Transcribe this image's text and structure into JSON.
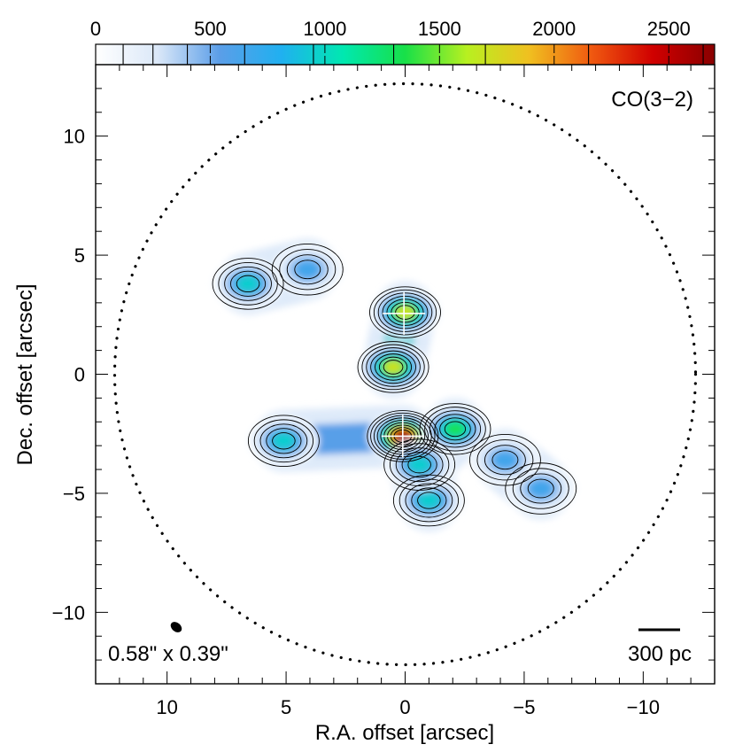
{
  "chart_data": {
    "type": "heatmap",
    "xlabel": "R.A. offset [arcsec]",
    "ylabel": "Dec. offset [arcsec]",
    "xlim": [
      13,
      -13
    ],
    "ylim": [
      -13,
      13
    ],
    "x_ticks": [
      10,
      5,
      0,
      -5,
      -10
    ],
    "x_tick_labels": [
      "10",
      "5",
      "0",
      "−5",
      "−10"
    ],
    "y_ticks": [
      -10,
      -5,
      0,
      5,
      10
    ],
    "y_tick_labels": [
      "−10",
      "−5",
      "0",
      "5",
      "10"
    ],
    "colorbar": {
      "range": [
        0,
        2700
      ],
      "ticks": [
        0,
        500,
        1000,
        1500,
        2000,
        2500
      ],
      "tick_labels": [
        "0",
        "500",
        "1000",
        "1500",
        "2000",
        "2500"
      ],
      "contour_levels": [
        120,
        250,
        400,
        650,
        950,
        1300,
        1700,
        2150,
        2650
      ],
      "colormap": [
        "#ffffff",
        "#dbe8f8",
        "#5b9ee8",
        "#20b0f0",
        "#00e8b0",
        "#18e048",
        "#b8f020",
        "#f0c020",
        "#f05a10",
        "#d00000",
        "#8a0000"
      ]
    },
    "field_of_view_radius_arcsec": 12.2,
    "annotations": {
      "line": "CO(3−2)",
      "beam": "0.58\" x 0.39\"",
      "scalebar": "300 pc"
    },
    "markers": [
      {
        "x": 0.05,
        "y": 2.55
      },
      {
        "x": 0.1,
        "y": -2.6
      }
    ],
    "emission_peaks": [
      {
        "x": 0.1,
        "y": -2.6,
        "value": 2650
      },
      {
        "x": 0.0,
        "y": 2.6,
        "value": 1850
      },
      {
        "x": 0.5,
        "y": 0.3,
        "value": 1700
      },
      {
        "x": -2.1,
        "y": -2.3,
        "value": 1300
      },
      {
        "x": -1.0,
        "y": -5.3,
        "value": 1050
      },
      {
        "x": -0.6,
        "y": -3.8,
        "value": 1000
      },
      {
        "x": 6.6,
        "y": 3.8,
        "value": 1000
      },
      {
        "x": 5.1,
        "y": -2.8,
        "value": 1000
      },
      {
        "x": -5.7,
        "y": -4.8,
        "value": 750
      },
      {
        "x": -4.2,
        "y": -3.6,
        "value": 700
      },
      {
        "x": 4.1,
        "y": 4.4,
        "value": 650
      }
    ]
  }
}
